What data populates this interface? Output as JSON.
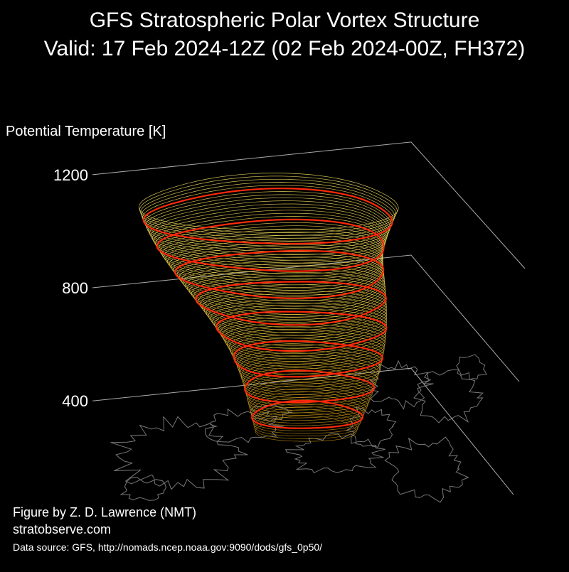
{
  "title": "GFS Stratospheric Polar Vortex Structure",
  "subtitle": "Valid: 17 Feb 2024-12Z  (02 Feb 2024-00Z, FH372)",
  "credits": {
    "author": "Figure by Z. D. Lawrence (NMT)",
    "site": "stratobserve.com",
    "source": "Data source: GFS, http://nomads.ncep.noaa.gov:9090/dods/gfs_0p50/"
  },
  "colors": {
    "background": "#000000",
    "text": "#ffffff",
    "axis_line": "#aaaaaa",
    "coastline": "#777777",
    "isosurface_low": "#b8860b",
    "isosurface_mid": "#e8c840",
    "isosurface_high": "#f5e060",
    "highlight_contour": "#ff2a0a"
  },
  "chart_data": {
    "type": "3d-isosurface",
    "zlabel": "Potential Temperature [K]",
    "zticks": [
      400,
      800,
      1200
    ],
    "zlim": [
      300,
      1250
    ],
    "grid": true,
    "series": [
      {
        "levels": [
          400,
          450,
          500,
          550,
          600,
          650,
          700,
          750,
          800,
          850,
          900,
          950,
          1000,
          1050,
          1100,
          1150,
          1200
        ],
        "highlighted_levels": [
          450,
          550,
          650,
          750,
          850,
          950,
          1050,
          1150
        ]
      }
    ],
    "map": "Northern Hemisphere coastlines (polar stereographic base)"
  }
}
